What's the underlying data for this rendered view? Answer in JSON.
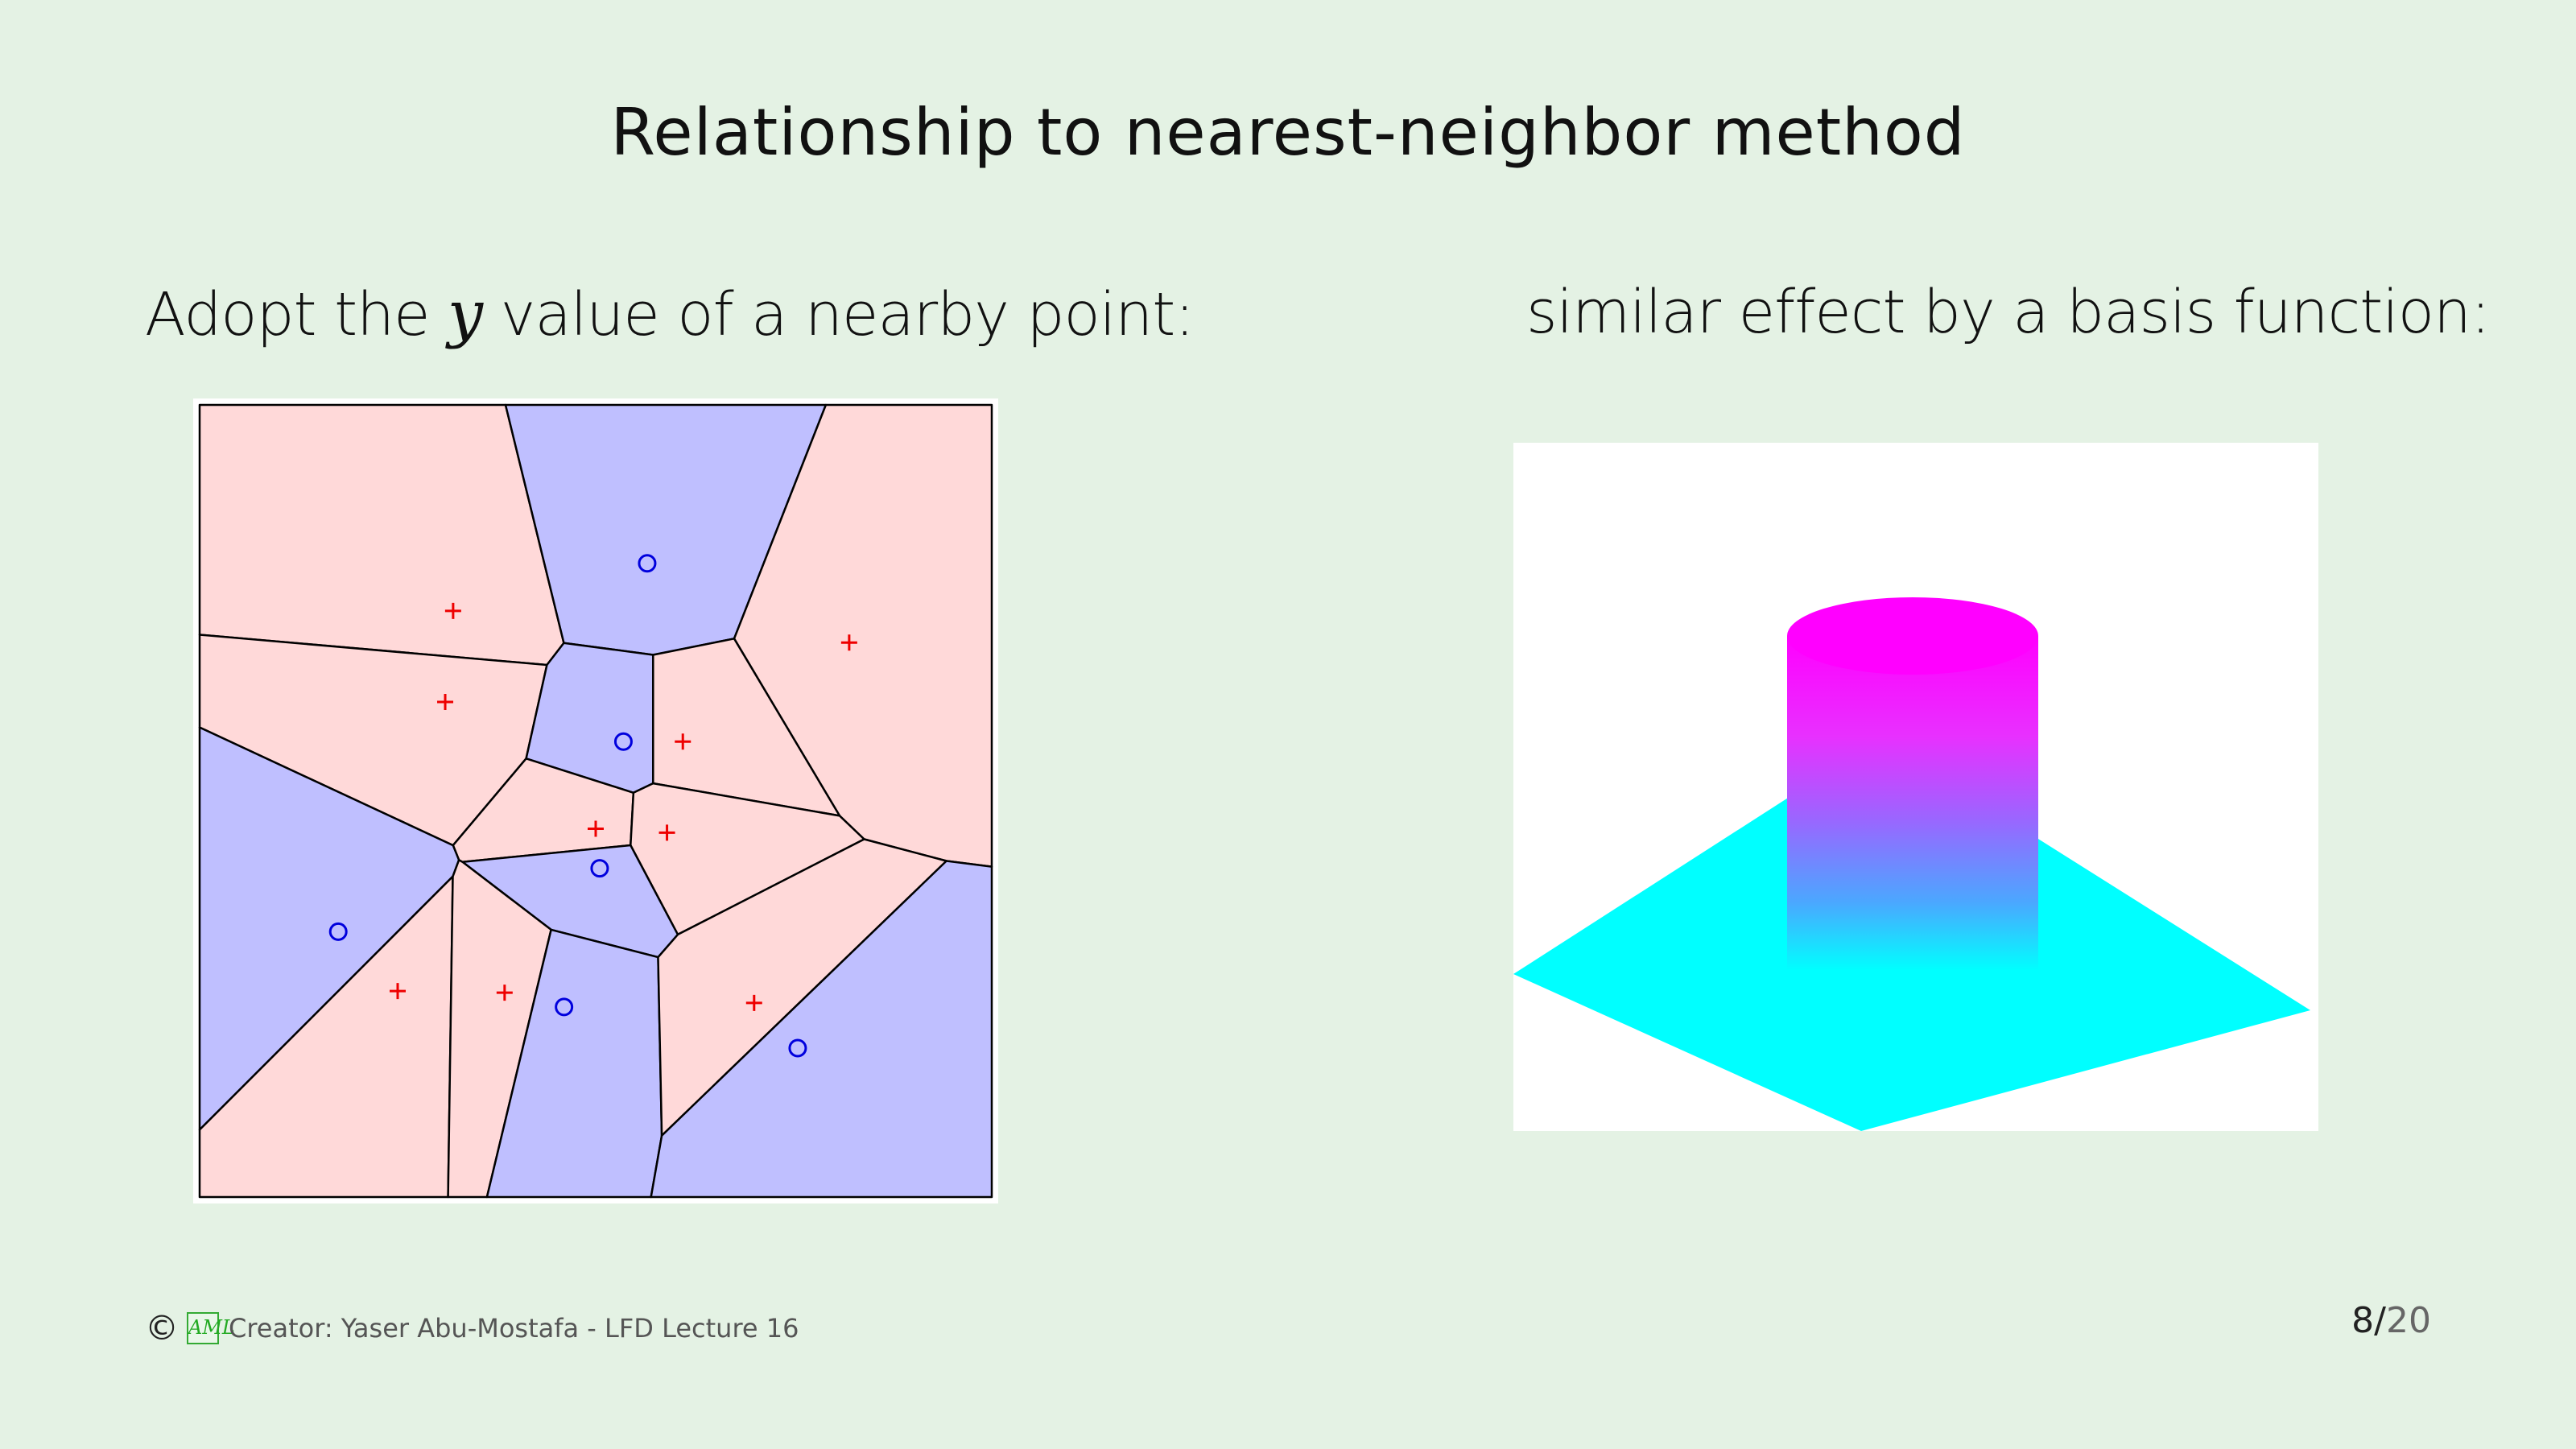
{
  "slide": {
    "title": "Relationship to nearest-neighbor method",
    "left_heading_pre": "Adopt the ",
    "left_heading_var": "y",
    "left_heading_post": " value of a nearby point:",
    "right_heading": "similar effect by a basis function:"
  },
  "footer": {
    "copyright": "©",
    "logo_text": "AML",
    "creator": "Creator: Yaser Abu-Mostafa - LFD Lecture 16",
    "page_current": "8",
    "page_separator": "/",
    "page_total": "20"
  },
  "colors": {
    "region_red": "#ffd9d9",
    "region_blue": "#bfbfff",
    "plus_mark": "#ee0000",
    "circle_mark": "#0000dd",
    "cylinder_top": "#ff00ff",
    "cylinder_bottom": "#00ffff",
    "base_plane": "#00ffff"
  },
  "voronoi": {
    "points": [
      {
        "x": 0.32,
        "y": 0.74,
        "label": "plus"
      },
      {
        "x": 0.31,
        "y": 0.625,
        "label": "plus"
      },
      {
        "x": 0.565,
        "y": 0.8,
        "label": "circle"
      },
      {
        "x": 0.82,
        "y": 0.7,
        "label": "plus"
      },
      {
        "x": 0.535,
        "y": 0.575,
        "label": "circle"
      },
      {
        "x": 0.61,
        "y": 0.575,
        "label": "plus"
      },
      {
        "x": 0.5,
        "y": 0.465,
        "label": "plus"
      },
      {
        "x": 0.59,
        "y": 0.46,
        "label": "plus"
      },
      {
        "x": 0.505,
        "y": 0.415,
        "label": "circle"
      },
      {
        "x": 0.175,
        "y": 0.335,
        "label": "circle"
      },
      {
        "x": 0.25,
        "y": 0.26,
        "label": "plus"
      },
      {
        "x": 0.385,
        "y": 0.258,
        "label": "plus"
      },
      {
        "x": 0.46,
        "y": 0.24,
        "label": "circle"
      },
      {
        "x": 0.7,
        "y": 0.245,
        "label": "plus"
      },
      {
        "x": 0.755,
        "y": 0.188,
        "label": "circle"
      }
    ]
  }
}
